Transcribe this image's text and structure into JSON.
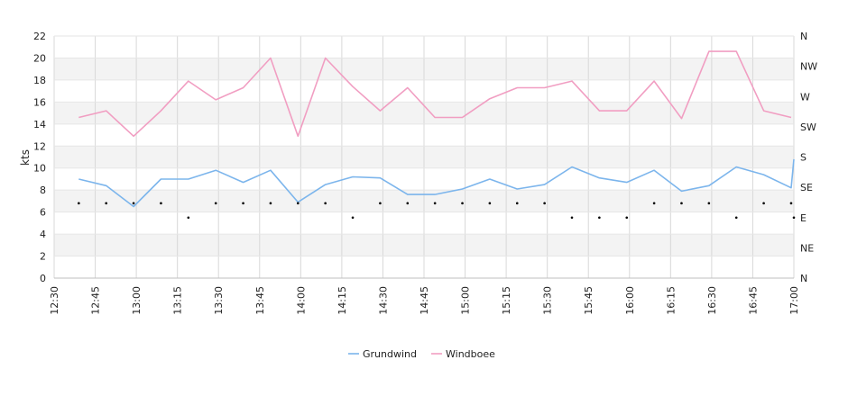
{
  "chart_data": {
    "type": "line",
    "ylabel": "kts",
    "ylim": [
      0,
      22
    ],
    "y_ticks": [
      0,
      2,
      4,
      6,
      8,
      10,
      12,
      14,
      16,
      18,
      20,
      22
    ],
    "x_range_minutes": [
      750,
      1020
    ],
    "x_ticks": [
      "12:30",
      "12:45",
      "13:00",
      "13:15",
      "13:30",
      "13:45",
      "14:00",
      "14:15",
      "14:30",
      "14:45",
      "15:00",
      "15:15",
      "15:30",
      "15:45",
      "16:00",
      "16:15",
      "16:30",
      "16:45",
      "17:00"
    ],
    "right_axis_labels": [
      "N",
      "NE",
      "E",
      "SE",
      "S",
      "SW",
      "W",
      "NW",
      "N"
    ],
    "grid": true,
    "legend_position": "bottom-center",
    "series": [
      {
        "name": "Grundwind",
        "color": "#7cb5ec",
        "values": [
          [
            "12:39",
            9.0
          ],
          [
            "12:49",
            8.4
          ],
          [
            "12:59",
            6.5
          ],
          [
            "13:09",
            9.0
          ],
          [
            "13:19",
            9.0
          ],
          [
            "13:29",
            9.8
          ],
          [
            "13:39",
            8.7
          ],
          [
            "13:49",
            9.8
          ],
          [
            "13:59",
            6.9
          ],
          [
            "14:09",
            8.5
          ],
          [
            "14:19",
            9.2
          ],
          [
            "14:29",
            9.1
          ],
          [
            "14:39",
            7.6
          ],
          [
            "14:49",
            7.6
          ],
          [
            "14:59",
            8.1
          ],
          [
            "15:09",
            9.0
          ],
          [
            "15:19",
            8.1
          ],
          [
            "15:29",
            8.5
          ],
          [
            "15:39",
            10.1
          ],
          [
            "15:49",
            9.1
          ],
          [
            "15:59",
            8.7
          ],
          [
            "16:09",
            9.8
          ],
          [
            "16:19",
            7.9
          ],
          [
            "16:29",
            8.4
          ],
          [
            "16:39",
            10.1
          ],
          [
            "16:49",
            9.4
          ],
          [
            "16:59",
            8.2
          ],
          [
            "17:00",
            10.8
          ]
        ]
      },
      {
        "name": "Windboee",
        "color": "#f19ec2",
        "values": [
          [
            "12:39",
            14.6
          ],
          [
            "12:49",
            15.2
          ],
          [
            "12:59",
            12.9
          ],
          [
            "13:09",
            15.2
          ],
          [
            "13:19",
            17.9
          ],
          [
            "13:29",
            16.2
          ],
          [
            "13:39",
            17.3
          ],
          [
            "13:49",
            20.0
          ],
          [
            "13:59",
            12.9
          ],
          [
            "14:09",
            20.0
          ],
          [
            "14:19",
            17.4
          ],
          [
            "14:29",
            15.2
          ],
          [
            "14:39",
            17.3
          ],
          [
            "14:49",
            14.6
          ],
          [
            "14:59",
            14.6
          ],
          [
            "15:09",
            16.3
          ],
          [
            "15:19",
            17.3
          ],
          [
            "15:29",
            17.3
          ],
          [
            "15:39",
            17.9
          ],
          [
            "15:49",
            15.2
          ],
          [
            "15:59",
            15.2
          ],
          [
            "16:09",
            17.9
          ],
          [
            "16:19",
            14.5
          ],
          [
            "16:29",
            20.6
          ],
          [
            "16:39",
            20.6
          ],
          [
            "16:49",
            15.2
          ],
          [
            "16:59",
            14.6
          ]
        ]
      }
    ],
    "direction_points": [
      [
        "12:39",
        6.8
      ],
      [
        "12:49",
        6.8
      ],
      [
        "12:59",
        6.8
      ],
      [
        "13:09",
        6.8
      ],
      [
        "13:19",
        5.5
      ],
      [
        "13:29",
        6.8
      ],
      [
        "13:39",
        6.8
      ],
      [
        "13:49",
        6.8
      ],
      [
        "13:59",
        6.8
      ],
      [
        "14:09",
        6.8
      ],
      [
        "14:19",
        5.5
      ],
      [
        "14:29",
        6.8
      ],
      [
        "14:39",
        6.8
      ],
      [
        "14:49",
        6.8
      ],
      [
        "14:59",
        6.8
      ],
      [
        "15:09",
        6.8
      ],
      [
        "15:19",
        6.8
      ],
      [
        "15:29",
        6.8
      ],
      [
        "15:39",
        5.5
      ],
      [
        "15:49",
        5.5
      ],
      [
        "15:59",
        5.5
      ],
      [
        "16:09",
        6.8
      ],
      [
        "16:19",
        6.8
      ],
      [
        "16:29",
        6.8
      ],
      [
        "16:39",
        5.5
      ],
      [
        "16:49",
        6.8
      ],
      [
        "16:59",
        6.8
      ],
      [
        "17:00",
        5.5
      ]
    ]
  }
}
